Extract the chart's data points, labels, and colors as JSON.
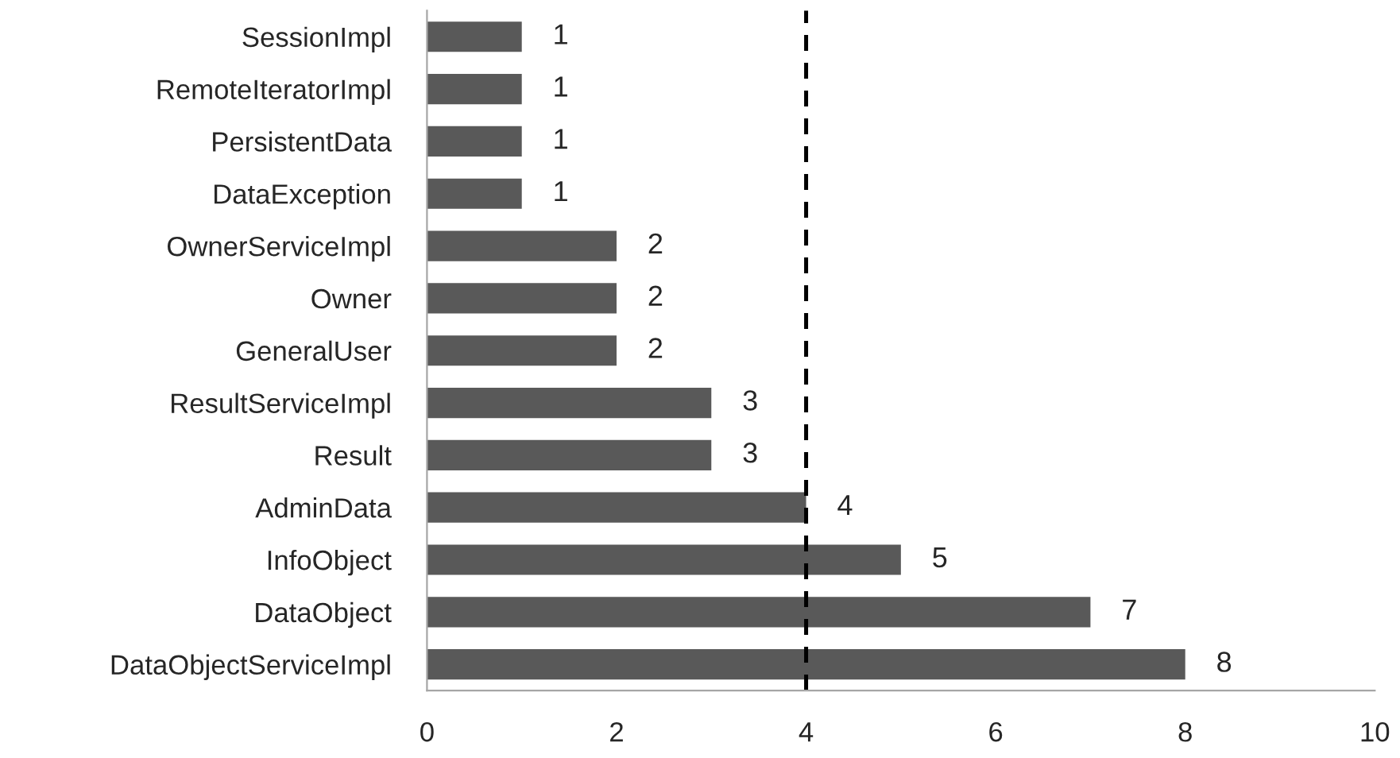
{
  "chart_data": {
    "type": "bar",
    "orientation": "horizontal",
    "categories": [
      "SessionImpl",
      "RemoteIteratorImpl",
      "PersistentData",
      "DataException",
      "OwnerServiceImpl",
      "Owner",
      "GeneralUser",
      "ResultServiceImpl",
      "Result",
      "AdminData",
      "InfoObject",
      "DataObject",
      "DataObjectServiceImpl"
    ],
    "values": [
      1,
      1,
      1,
      1,
      2,
      2,
      2,
      3,
      3,
      4,
      5,
      7,
      8
    ],
    "color": "#595959",
    "xlim": [
      0,
      10
    ],
    "xticks": [
      0,
      2,
      4,
      6,
      8,
      10
    ],
    "grid": false,
    "data_labels": true,
    "ref_lines": [
      {
        "axis": "x",
        "value": 4,
        "color": "#000000",
        "line_style": "dashed"
      }
    ]
  }
}
